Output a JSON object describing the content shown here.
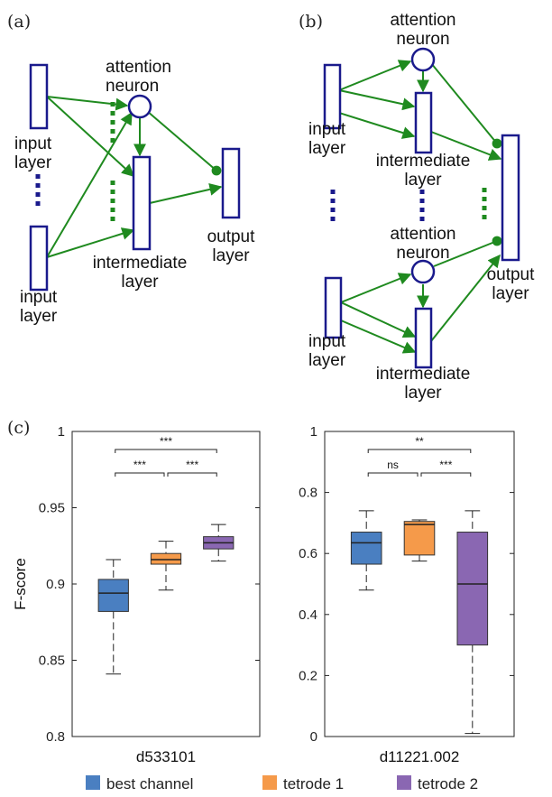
{
  "panels": {
    "a": {
      "label": "(a)",
      "input_layer_top": "input layer",
      "input_layer_bottom": "input layer",
      "attention_neuron": "attention neuron",
      "intermediate_layer": "intermediate layer",
      "output_layer": "output layer"
    },
    "b": {
      "label": "(b)",
      "attention_neuron_top": "attention neuron",
      "input_layer_top": "input layer",
      "intermediate_layer_top": "intermediate layer",
      "attention_neuron_bottom": "attention neuron",
      "input_layer_bottom": "input layer",
      "intermediate_layer_bottom": "intermediate layer",
      "output_layer": "output layer"
    },
    "c": {
      "label": "(c)"
    }
  },
  "colors": {
    "network_blue": "#1a1a8c",
    "connection_green": "#1f8a1f",
    "best_channel": "#4a7fc1",
    "tetrode_1": "#f59a4a",
    "tetrode_2": "#8a67b2"
  },
  "legend": [
    {
      "label": "best channel",
      "color": "#4a7fc1"
    },
    {
      "label": "tetrode 1",
      "color": "#f59a4a"
    },
    {
      "label": "tetrode 2",
      "color": "#8a67b2"
    }
  ],
  "chart_data": [
    {
      "type": "box",
      "xlabel": "d533101",
      "ylabel": "F-score",
      "ylim": [
        0.8,
        1
      ],
      "yticks": [
        "0.8",
        "0.85",
        "0.9",
        "0.95",
        "1"
      ],
      "series": [
        {
          "name": "best channel",
          "whisker_low": 0.841,
          "q1": 0.882,
          "median": 0.894,
          "q3": 0.903,
          "whisker_high": 0.916
        },
        {
          "name": "tetrode 1",
          "whisker_low": 0.896,
          "q1": 0.913,
          "median": 0.916,
          "q3": 0.92,
          "whisker_high": 0.928
        },
        {
          "name": "tetrode 2",
          "whisker_low": 0.915,
          "q1": 0.923,
          "median": 0.927,
          "q3": 0.931,
          "whisker_high": 0.939
        }
      ],
      "significance": [
        {
          "pair": [
            1,
            2
          ],
          "text": "***"
        },
        {
          "pair": [
            2,
            3
          ],
          "text": "***"
        },
        {
          "pair": [
            1,
            3
          ],
          "text": "***"
        }
      ]
    },
    {
      "type": "box",
      "xlabel": "d11221.002",
      "ylabel": "",
      "ylim": [
        0,
        1
      ],
      "yticks": [
        "0",
        "0.2",
        "0.4",
        "0.6",
        "0.8",
        "1"
      ],
      "series": [
        {
          "name": "best channel",
          "whisker_low": 0.48,
          "q1": 0.565,
          "median": 0.635,
          "q3": 0.67,
          "whisker_high": 0.74
        },
        {
          "name": "tetrode 1",
          "whisker_low": 0.575,
          "q1": 0.595,
          "median": 0.695,
          "q3": 0.705,
          "whisker_high": 0.71
        },
        {
          "name": "tetrode 2",
          "whisker_low": 0.01,
          "q1": 0.3,
          "median": 0.5,
          "q3": 0.67,
          "whisker_high": 0.74
        }
      ],
      "significance": [
        {
          "pair": [
            1,
            2
          ],
          "text": "ns"
        },
        {
          "pair": [
            2,
            3
          ],
          "text": "***"
        },
        {
          "pair": [
            1,
            3
          ],
          "text": "**"
        }
      ]
    }
  ]
}
